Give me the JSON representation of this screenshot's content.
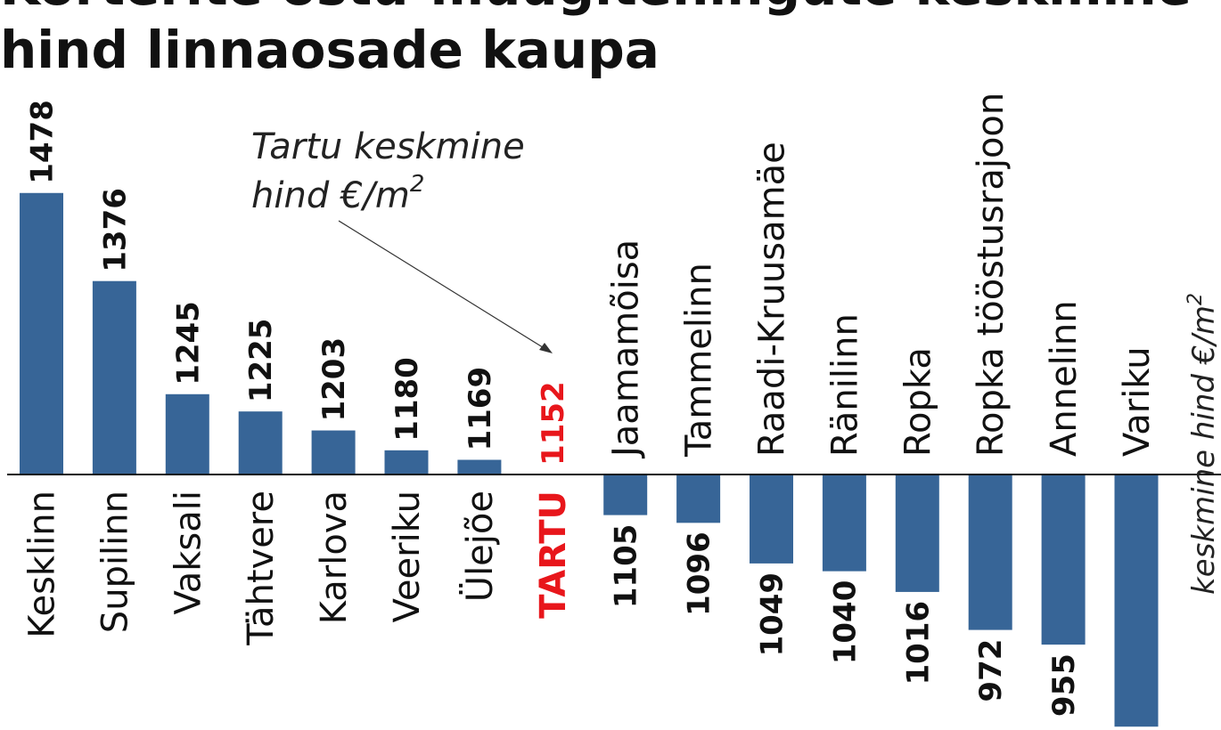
{
  "title_lines": [
    "Korterite ostu-müügitehingute keskmine",
    "hind linnaosade kaupa"
  ],
  "annotation": {
    "line1": "Tartu keskmine",
    "line2": "hind €/m",
    "sup": "2"
  },
  "chart_data": {
    "type": "bar",
    "title": "Korterite ostu-müügitehingute keskmine hind linnaosade kaupa",
    "ylabel": "keskmine hind €/m2",
    "ylabel_main": "keskmine hind €/m",
    "ylabel_sup": "2",
    "baseline": 1152,
    "highlight_category": "TARTU",
    "categories": [
      "Kesklinn",
      "Supilinn",
      "Vaksali",
      "Tähtvere",
      "Karlova",
      "Veeriku",
      "Ülejõe",
      "TARTU",
      "Jaamamõisa",
      "Tammelinn",
      "Raadi-Kruusamäe",
      "Ränilinn",
      "Ropka",
      "Ropka tööstusrajoon",
      "Annelinn",
      "Variku"
    ],
    "values": [
      1478,
      1376,
      1245,
      1225,
      1203,
      1180,
      1169,
      1152,
      1105,
      1096,
      1049,
      1040,
      1016,
      972,
      955,
      860
    ],
    "value_labels": [
      "1478",
      "1376",
      "1245",
      "1225",
      "1203",
      "1180",
      "1169",
      "1152",
      "1105",
      "1096",
      "1049",
      "1040",
      "1016",
      "972",
      "955",
      ""
    ],
    "colors": {
      "bar": "#376597",
      "highlight": "#e8161b",
      "text": "#111111"
    }
  }
}
